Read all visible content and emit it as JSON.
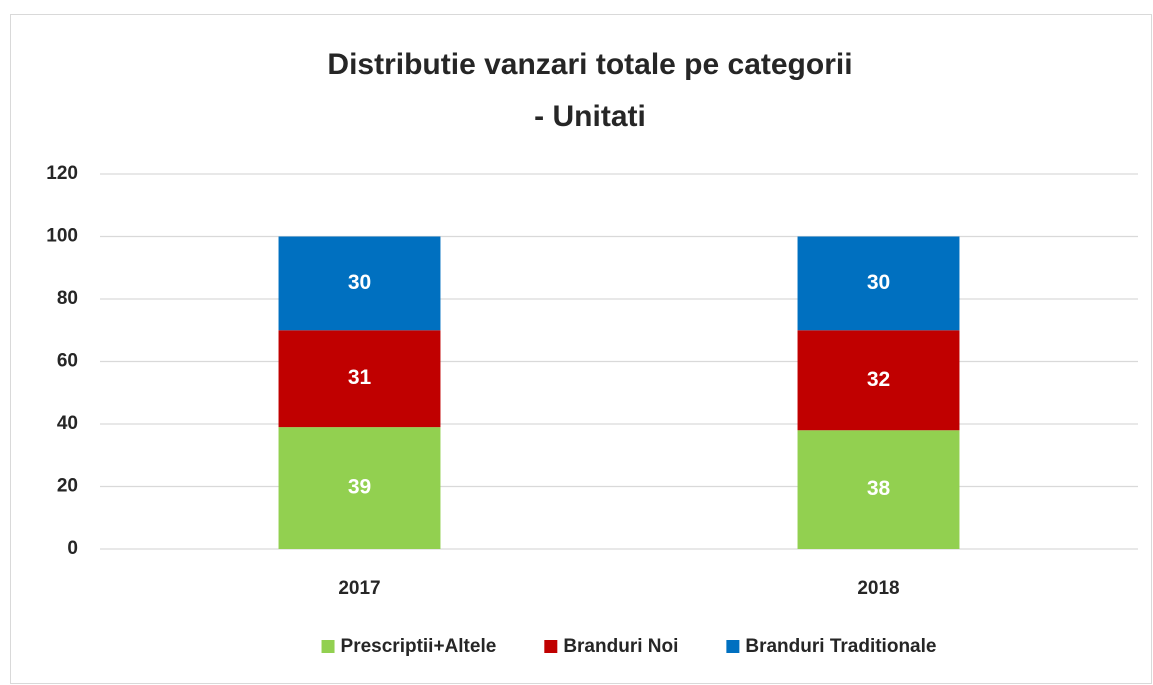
{
  "chart_data": {
    "type": "stacked_bar",
    "title": [
      "Distributie vanzari totale pe categorii",
      "- Unitati"
    ],
    "categories": [
      "2017",
      "2018"
    ],
    "series": [
      {
        "name": "Prescriptii+Altele",
        "color": "#92d050",
        "values": [
          39,
          38
        ]
      },
      {
        "name": "Branduri Noi",
        "color": "#c00000",
        "values": [
          31,
          32
        ]
      },
      {
        "name": "Branduri Traditionale",
        "color": "#0070c0",
        "values": [
          30,
          30
        ]
      }
    ],
    "ylim": [
      0,
      120
    ],
    "yticks": [
      0,
      20,
      40,
      60,
      80,
      100,
      120
    ],
    "grid": true,
    "legend": "bottom"
  }
}
